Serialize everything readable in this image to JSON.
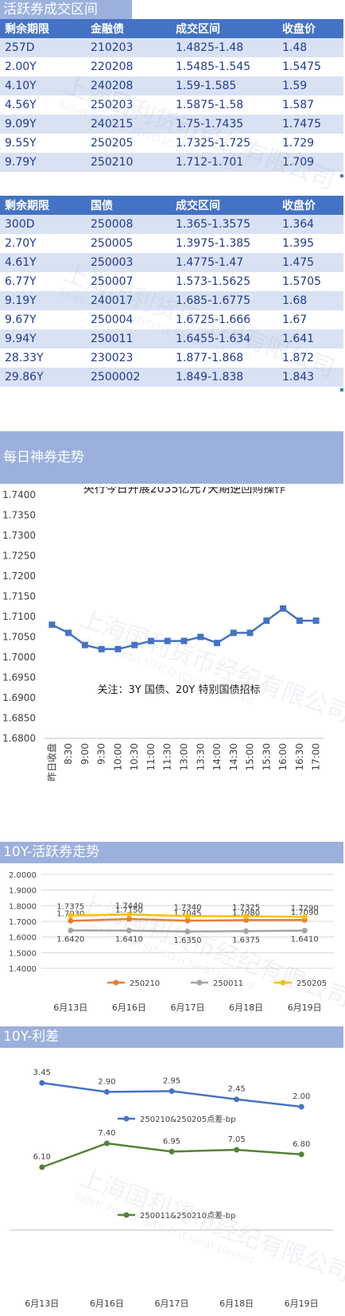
{
  "section1": {
    "title": "活跃券成交区间",
    "headers": [
      "剩余期限",
      "金融债",
      "成交区间",
      "收盘价"
    ],
    "rows": [
      [
        "257D",
        "210203",
        "1.4825-1.48",
        "1.48"
      ],
      [
        "2.00Y",
        "220208",
        "1.5485-1.545",
        "1.5475"
      ],
      [
        "4.10Y",
        "240208",
        "1.59-1.585",
        "1.59"
      ],
      [
        "4.56Y",
        "250203",
        "1.5875-1.58",
        "1.587"
      ],
      [
        "9.09Y",
        "240215",
        "1.75-1.7435",
        "1.7475"
      ],
      [
        "9.55Y",
        "250205",
        "1.7325-1.725",
        "1.729"
      ],
      [
        "9.79Y",
        "250210",
        "1.712-1.701",
        "1.709"
      ]
    ]
  },
  "section2": {
    "headers": [
      "剩余期限",
      "国债",
      "成交区间",
      "收盘价"
    ],
    "rows": [
      [
        "300D",
        "250008",
        "1.365-1.3575",
        "1.364"
      ],
      [
        "2.70Y",
        "250005",
        "1.3975-1.385",
        "1.395"
      ],
      [
        "4.61Y",
        "250003",
        "1.4775-1.47",
        "1.475"
      ],
      [
        "6.77Y",
        "250007",
        "1.573-1.5625",
        "1.5705"
      ],
      [
        "9.19Y",
        "240017",
        "1.685-1.6775",
        "1.68"
      ],
      [
        "9.67Y",
        "250004",
        "1.6725-1.666",
        "1.67"
      ],
      [
        "9.94Y",
        "250011",
        "1.6455-1.634",
        "1.641"
      ],
      [
        "28.33Y",
        "230023",
        "1.877-1.868",
        "1.872"
      ],
      [
        "29.86Y",
        "2500002",
        "1.849-1.838",
        "1.843"
      ]
    ]
  },
  "section3": {
    "title": "每日神券走势"
  },
  "section4": {
    "title": "10Y-活跃券走势"
  },
  "section5": {
    "title": "10Y-利差"
  },
  "watermark": {
    "cn": "上海国利货币经纪有限公司",
    "en": "Tullett Prebon SITICO (China) Limited"
  },
  "colors": {
    "header_blue": "#4472c4",
    "row_band": "#d9e2f3",
    "banner": "#9bb0dc",
    "series_blue": "#4472c4",
    "series_orange": "#ed7d31",
    "series_gray": "#a5a5a5",
    "series_yellow": "#ffc000",
    "series_green": "#548235"
  },
  "chart_data": [
    {
      "type": "line",
      "title": "央行今日开展2035亿元7天期逆回购操作",
      "annotation": "关注：3Y 国债、20Y 特别国债招标",
      "categories": [
        "昨日收盘",
        "8:30",
        "9:00",
        "9:30",
        "10:00",
        "10:30",
        "11:00",
        "11:30",
        "13:00",
        "13:30",
        "14:00",
        "14:30",
        "15:00",
        "15:30",
        "16:00",
        "16:30",
        "17:00"
      ],
      "series": [
        {
          "values": [
            1.708,
            1.706,
            1.703,
            1.702,
            1.702,
            1.703,
            1.704,
            1.704,
            1.704,
            1.705,
            1.7035,
            1.706,
            1.706,
            1.709,
            1.712,
            1.709,
            1.709
          ]
        }
      ],
      "ylim": [
        1.68,
        1.74
      ],
      "yticks": [
        "1.7400",
        "1.7350",
        "1.7300",
        "1.7250",
        "1.7200",
        "1.7150",
        "1.7100",
        "1.7050",
        "1.7000",
        "1.6950",
        "1.6900",
        "1.6850",
        "1.6800"
      ],
      "grid": false
    },
    {
      "type": "line",
      "categories": [
        "6月13日",
        "6月16日",
        "6月17日",
        "6月18日",
        "6月19日"
      ],
      "series": [
        {
          "name": "250210",
          "values": [
            1.703,
            1.715,
            1.7045,
            1.708,
            1.709
          ]
        },
        {
          "name": "250011",
          "values": [
            1.642,
            1.641,
            1.635,
            1.6375,
            1.641
          ]
        },
        {
          "name": "250205",
          "values": [
            1.7375,
            1.744,
            1.734,
            1.7325,
            1.729
          ]
        }
      ],
      "data_labels": {
        "250210": [
          "1.7030",
          "1.7150",
          "1.7045",
          "1.7080",
          "1.7090"
        ],
        "250011": [
          "1.6420",
          "1.6410",
          "1.6350",
          "1.6375",
          "1.6410"
        ],
        "250205": [
          "1.7375",
          "1.7440",
          "1.7340",
          "1.7325",
          "1.7290"
        ]
      },
      "ylim": [
        1.4,
        2.0
      ],
      "yticks": [
        "2.0000",
        "1.9000",
        "1.8000",
        "1.7000",
        "1.6000",
        "1.5000",
        "1.4000"
      ],
      "legend": "bottom",
      "grid": true
    },
    {
      "type": "line",
      "categories": [
        "6月13日",
        "6月16日",
        "6月17日",
        "6月18日",
        "6月19日"
      ],
      "series": [
        {
          "name": "250210&250205点差-bp",
          "values": [
            3.45,
            2.9,
            2.95,
            2.45,
            2.0
          ],
          "labels": [
            "3.45",
            "2.90",
            "2.95",
            "2.45",
            "2.00"
          ]
        },
        {
          "name": "250011&250210点差-bp",
          "values": [
            6.1,
            7.4,
            6.95,
            7.05,
            6.8
          ],
          "labels": [
            "6.10",
            "7.40",
            "6.95",
            "7.05",
            "6.80"
          ]
        }
      ],
      "legend": "below each series"
    }
  ]
}
